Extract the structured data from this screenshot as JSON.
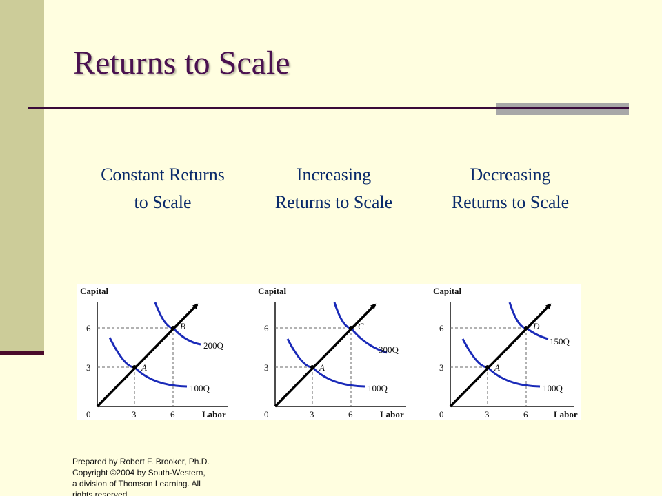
{
  "slide": {
    "title": "Returns to Scale",
    "footer": "Prepared by Robert F. Brooker, Ph.D.   Copyright ©2004 by South-Western, a division of Thomson Learning.  All rights reserved."
  },
  "colors": {
    "background": "#FFFEE0",
    "side_bar": "#CCCC99",
    "title": "#4A1150",
    "heading": "#0A2A6A",
    "isoquant": "#1A2AB8"
  },
  "panels": [
    {
      "heading_line1": "Constant Returns",
      "heading_line2": "to Scale",
      "y_axis_label": "Capital",
      "x_axis_label": "Labor",
      "origin_label": "0",
      "x_ticks": [
        "3",
        "6"
      ],
      "y_ticks": [
        "3",
        "6"
      ],
      "point_low": "A",
      "point_high": "B",
      "isoquant_low": "100Q",
      "isoquant_high": "200Q"
    },
    {
      "heading_line1": "Increasing",
      "heading_line2": "Returns to Scale",
      "y_axis_label": "Capital",
      "x_axis_label": "Labor",
      "origin_label": "0",
      "x_ticks": [
        "3",
        "6"
      ],
      "y_ticks": [
        "3",
        "6"
      ],
      "point_low": "A",
      "point_high": "C",
      "isoquant_low": "100Q",
      "isoquant_high": "300Q"
    },
    {
      "heading_line1": "Decreasing",
      "heading_line2": "Returns to Scale",
      "y_axis_label": "Capital",
      "x_axis_label": "Labor",
      "origin_label": "0",
      "x_ticks": [
        "3",
        "6"
      ],
      "y_ticks": [
        "3",
        "6"
      ],
      "point_low": "A",
      "point_high": "D",
      "isoquant_low": "100Q",
      "isoquant_high": "150Q"
    }
  ]
}
